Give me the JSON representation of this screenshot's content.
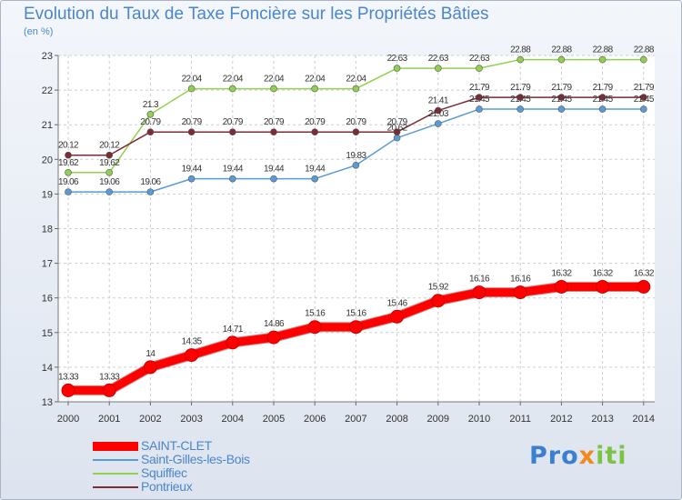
{
  "title": "Evolution du Taux de Taxe Foncière sur les Propriétés Bâties",
  "unit_label": "(en %)",
  "logo": {
    "part1": "Pro",
    "part2": "x",
    "part3": "iti"
  },
  "chart_data": {
    "type": "line",
    "categories": [
      "2000",
      "2001",
      "2002",
      "2003",
      "2004",
      "2005",
      "2006",
      "2007",
      "2008",
      "2009",
      "2010",
      "2011",
      "2012",
      "2013",
      "2014"
    ],
    "ylim": [
      13,
      23
    ],
    "yticks": [
      13,
      14,
      15,
      16,
      17,
      18,
      19,
      20,
      21,
      22,
      23
    ],
    "grid": true,
    "legend_position": "bottom-left",
    "series": [
      {
        "name": "SAINT-CLET",
        "color": "#ff0000",
        "width": 9,
        "values": [
          13.33,
          13.33,
          14,
          14.35,
          14.71,
          14.86,
          15.16,
          15.16,
          15.46,
          15.92,
          16.16,
          16.16,
          16.32,
          16.32,
          16.32
        ],
        "labels": [
          "13.33",
          "13.33",
          "14",
          "14.35",
          "14.71",
          "14.86",
          "15.16",
          "15.16",
          "15.46",
          "15.92",
          "16.16",
          "16.16",
          "16.32",
          "16.32",
          "16.32"
        ]
      },
      {
        "name": "Saint-Gilles-les-Bois",
        "color": "#5b9bd5",
        "width": 1.5,
        "values": [
          19.06,
          19.06,
          19.06,
          19.44,
          19.44,
          19.44,
          19.44,
          19.83,
          20.62,
          21.03,
          21.45,
          21.45,
          21.45,
          21.45,
          21.45
        ],
        "labels": [
          "19.06",
          "19.06",
          "19.06",
          "19.44",
          "19.44",
          "19.44",
          "19.44",
          "19.83",
          "20.62",
          "21.03",
          "21.45",
          "21.45",
          "21.45",
          "21.45",
          "21.45"
        ]
      },
      {
        "name": "Squiffiec",
        "color": "#92d050",
        "width": 1.5,
        "values": [
          19.62,
          19.62,
          21.3,
          22.04,
          22.04,
          22.04,
          22.04,
          22.04,
          22.63,
          22.63,
          22.63,
          22.88,
          22.88,
          22.88,
          22.88
        ],
        "labels": [
          "19.62",
          "19.62",
          "21.3",
          "22.04",
          "22.04",
          "22.04",
          "22.04",
          "22.04",
          "22.63",
          "22.63",
          "22.63",
          "22.88",
          "22.88",
          "22.88",
          "22.88"
        ]
      },
      {
        "name": "Pontrieux",
        "color": "#7b2c34",
        "width": 1.5,
        "values": [
          20.12,
          20.12,
          20.79,
          20.79,
          20.79,
          20.79,
          20.79,
          20.79,
          20.79,
          21.41,
          21.79,
          21.79,
          21.79,
          21.79,
          21.79
        ],
        "labels": [
          "20.12",
          "20.12",
          "20.79",
          "20.79",
          "20.79",
          "20.79",
          "20.79",
          "20.79",
          "20.79",
          "21.41",
          "21.79",
          "21.79",
          "21.79",
          "21.79",
          "21.79"
        ]
      }
    ]
  }
}
